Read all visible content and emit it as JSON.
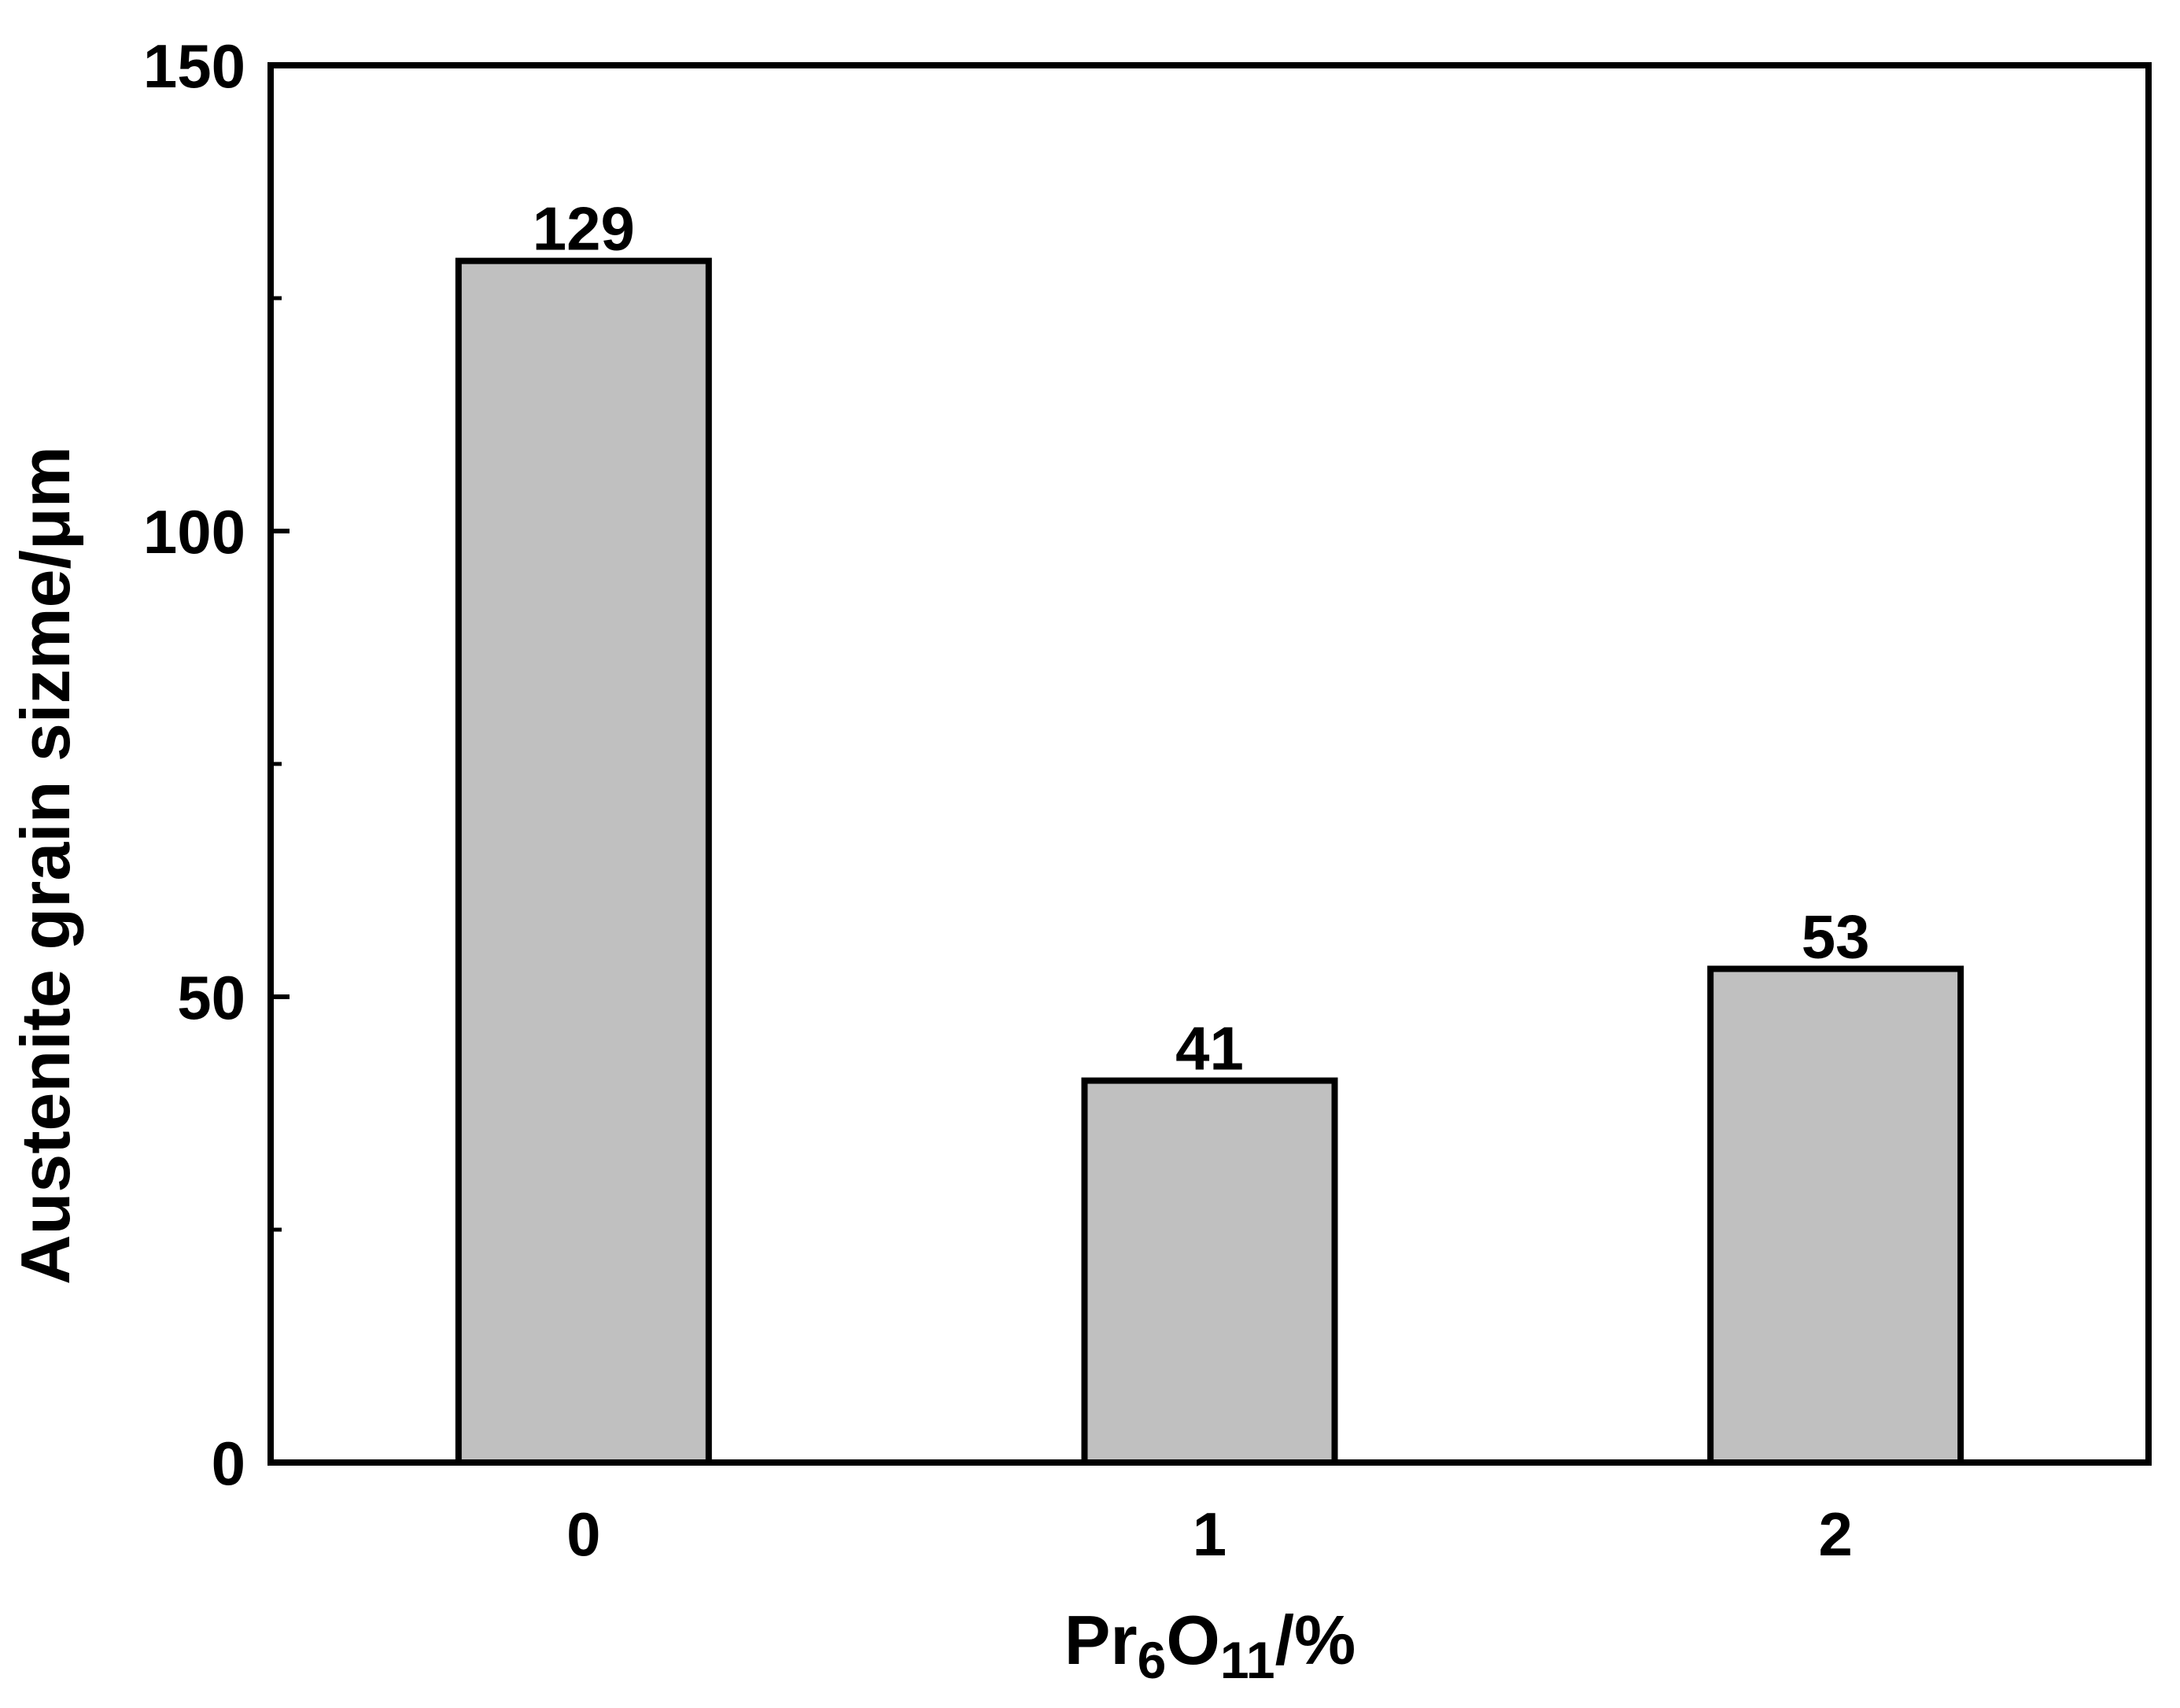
{
  "chart_data": {
    "type": "bar",
    "categories": [
      "0",
      "1",
      "2"
    ],
    "values": [
      129,
      41,
      53
    ],
    "data_labels": [
      "129",
      "41",
      "53"
    ],
    "title": "",
    "xlabel": {
      "base": "Pr",
      "sub1": "6",
      "mid": "O",
      "sub2": "11",
      "tail": "/%"
    },
    "ylabel": "Austenite grain sizme/μm",
    "ylim": [
      0,
      150
    ],
    "yticks": [
      0,
      50,
      100,
      150
    ],
    "yticks_minor": [
      25,
      75,
      125
    ],
    "ytick_labels": [
      "0",
      "50",
      "100",
      "150"
    ],
    "grid": false,
    "colors": {
      "bar_fill": "#c0c0c0",
      "bar_stroke": "#000000",
      "axis": "#000000"
    }
  }
}
